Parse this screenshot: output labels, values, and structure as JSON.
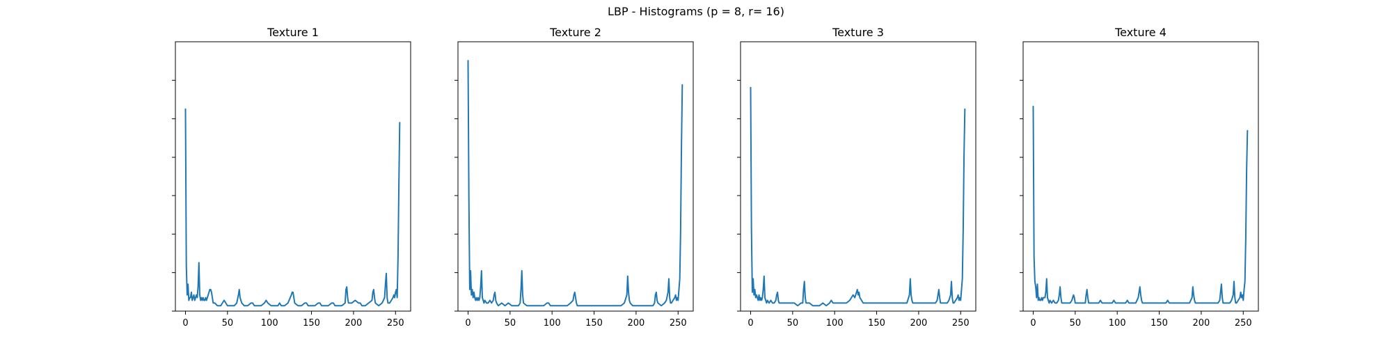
{
  "suptitle": "LBP - Histograms (p = 8, r= 16)",
  "chart_data": [
    {
      "type": "line",
      "title": "Texture 1",
      "xlabel": "",
      "ylabel": "",
      "xlim": [
        -12,
        268
      ],
      "ylim": [
        0,
        1
      ],
      "xticks": [
        0,
        50,
        100,
        150,
        200,
        250
      ],
      "yticks": [
        0,
        0.143,
        0.286,
        0.429,
        0.571,
        0.714,
        0.857
      ],
      "ytick_labels_visible": false,
      "color": "#1f77b4",
      "series": [
        {
          "x": [
            0,
            1,
            2,
            3,
            4,
            5,
            6,
            7,
            8,
            9,
            10,
            11,
            12,
            13,
            14,
            15,
            16,
            17,
            18,
            19,
            20,
            21,
            22,
            23,
            24,
            25,
            26,
            27,
            28,
            29,
            30,
            31,
            32,
            33,
            34,
            35,
            38,
            40,
            42,
            44,
            46,
            48,
            50,
            52,
            55,
            58,
            61,
            63,
            64,
            65,
            67,
            70,
            74,
            78,
            80,
            82,
            86,
            90,
            94,
            96,
            98,
            102,
            106,
            110,
            112,
            114,
            118,
            122,
            126,
            127,
            128,
            129,
            130,
            134,
            138,
            142,
            144,
            146,
            150,
            154,
            158,
            160,
            162,
            166,
            170,
            174,
            176,
            178,
            182,
            186,
            190,
            191,
            192,
            193,
            194,
            198,
            202,
            206,
            208,
            210,
            214,
            218,
            222,
            223,
            224,
            225,
            226,
            230,
            234,
            237,
            238,
            239,
            240,
            241,
            243,
            245,
            247,
            248,
            249,
            250,
            251,
            252,
            253,
            254,
            255
          ],
          "y": [
            0.75,
            0.17,
            0.06,
            0.1,
            0.04,
            0.05,
            0.05,
            0.07,
            0.04,
            0.05,
            0.06,
            0.04,
            0.05,
            0.06,
            0.05,
            0.09,
            0.18,
            0.06,
            0.04,
            0.05,
            0.04,
            0.05,
            0.04,
            0.04,
            0.05,
            0.04,
            0.05,
            0.06,
            0.07,
            0.08,
            0.08,
            0.07,
            0.05,
            0.03,
            0.03,
            0.03,
            0.02,
            0.02,
            0.02,
            0.03,
            0.04,
            0.03,
            0.02,
            0.02,
            0.02,
            0.02,
            0.03,
            0.06,
            0.08,
            0.05,
            0.03,
            0.02,
            0.02,
            0.03,
            0.03,
            0.02,
            0.02,
            0.02,
            0.03,
            0.04,
            0.03,
            0.02,
            0.02,
            0.02,
            0.03,
            0.02,
            0.02,
            0.03,
            0.06,
            0.07,
            0.07,
            0.05,
            0.03,
            0.02,
            0.02,
            0.03,
            0.03,
            0.02,
            0.02,
            0.02,
            0.03,
            0.03,
            0.02,
            0.02,
            0.02,
            0.03,
            0.03,
            0.02,
            0.02,
            0.02,
            0.03,
            0.08,
            0.09,
            0.05,
            0.03,
            0.03,
            0.04,
            0.03,
            0.03,
            0.02,
            0.02,
            0.03,
            0.04,
            0.07,
            0.08,
            0.05,
            0.03,
            0.02,
            0.03,
            0.05,
            0.1,
            0.14,
            0.05,
            0.03,
            0.03,
            0.04,
            0.05,
            0.06,
            0.05,
            0.07,
            0.08,
            0.05,
            0.2,
            0.47,
            0.7
          ]
        }
      ]
    },
    {
      "type": "line",
      "title": "Texture 2",
      "xlabel": "",
      "ylabel": "",
      "xlim": [
        -12,
        268
      ],
      "ylim": [
        0,
        1
      ],
      "xticks": [
        0,
        50,
        100,
        150,
        200,
        250
      ],
      "yticks": [
        0,
        0.143,
        0.286,
        0.429,
        0.571,
        0.714,
        0.857
      ],
      "ytick_labels_visible": false,
      "color": "#1f77b4",
      "series": [
        {
          "x": [
            0,
            1,
            2,
            3,
            4,
            5,
            6,
            7,
            8,
            9,
            10,
            11,
            12,
            13,
            14,
            15,
            16,
            17,
            18,
            19,
            20,
            22,
            24,
            26,
            28,
            30,
            31,
            32,
            33,
            34,
            36,
            40,
            44,
            48,
            52,
            56,
            60,
            62,
            63,
            64,
            65,
            66,
            70,
            74,
            78,
            82,
            86,
            90,
            94,
            96,
            98,
            102,
            106,
            110,
            114,
            118,
            122,
            125,
            126,
            127,
            128,
            129,
            130,
            134,
            140,
            146,
            150,
            156,
            160,
            166,
            170,
            174,
            178,
            182,
            186,
            189,
            190,
            191,
            192,
            193,
            196,
            200,
            204,
            208,
            212,
            216,
            220,
            222,
            223,
            224,
            225,
            226,
            230,
            234,
            236,
            238,
            239,
            240,
            241,
            242,
            244,
            246,
            247,
            248,
            249,
            250,
            251,
            252,
            253,
            254,
            255
          ],
          "y": [
            0.93,
            0.42,
            0.08,
            0.15,
            0.06,
            0.08,
            0.05,
            0.07,
            0.05,
            0.04,
            0.05,
            0.04,
            0.05,
            0.04,
            0.05,
            0.09,
            0.15,
            0.05,
            0.04,
            0.03,
            0.04,
            0.03,
            0.03,
            0.04,
            0.03,
            0.04,
            0.06,
            0.07,
            0.04,
            0.03,
            0.02,
            0.03,
            0.02,
            0.03,
            0.02,
            0.02,
            0.02,
            0.03,
            0.08,
            0.15,
            0.06,
            0.03,
            0.02,
            0.02,
            0.02,
            0.02,
            0.02,
            0.02,
            0.03,
            0.03,
            0.02,
            0.02,
            0.02,
            0.02,
            0.02,
            0.02,
            0.03,
            0.04,
            0.06,
            0.07,
            0.05,
            0.03,
            0.02,
            0.02,
            0.02,
            0.02,
            0.02,
            0.02,
            0.02,
            0.02,
            0.02,
            0.02,
            0.02,
            0.02,
            0.03,
            0.06,
            0.13,
            0.07,
            0.04,
            0.03,
            0.02,
            0.02,
            0.02,
            0.02,
            0.02,
            0.02,
            0.02,
            0.03,
            0.06,
            0.07,
            0.04,
            0.03,
            0.02,
            0.03,
            0.04,
            0.07,
            0.12,
            0.05,
            0.03,
            0.03,
            0.04,
            0.05,
            0.06,
            0.04,
            0.05,
            0.04,
            0.08,
            0.12,
            0.3,
            0.61,
            0.84
          ]
        }
      ]
    },
    {
      "type": "line",
      "title": "Texture 3",
      "xlabel": "",
      "ylabel": "",
      "xlim": [
        -12,
        268
      ],
      "ylim": [
        0,
        1
      ],
      "xticks": [
        0,
        50,
        100,
        150,
        200,
        250
      ],
      "yticks": [
        0,
        0.143,
        0.286,
        0.429,
        0.571,
        0.714,
        0.857
      ],
      "ytick_labels_visible": false,
      "color": "#1f77b4",
      "series": [
        {
          "x": [
            0,
            1,
            2,
            3,
            4,
            5,
            6,
            7,
            8,
            9,
            10,
            11,
            12,
            13,
            14,
            15,
            16,
            17,
            18,
            19,
            20,
            22,
            24,
            26,
            28,
            30,
            31,
            32,
            33,
            34,
            36,
            40,
            44,
            48,
            52,
            56,
            60,
            62,
            63,
            64,
            65,
            66,
            70,
            74,
            78,
            82,
            86,
            90,
            94,
            96,
            98,
            102,
            106,
            110,
            114,
            118,
            120,
            122,
            124,
            126,
            127,
            128,
            129,
            130,
            132,
            134,
            138,
            142,
            146,
            150,
            154,
            158,
            162,
            166,
            170,
            174,
            178,
            182,
            186,
            189,
            190,
            191,
            192,
            193,
            196,
            200,
            204,
            208,
            212,
            216,
            220,
            222,
            223,
            224,
            225,
            226,
            230,
            234,
            236,
            238,
            239,
            240,
            241,
            242,
            244,
            246,
            247,
            248,
            249,
            250,
            251,
            252,
            253,
            254,
            255
          ],
          "y": [
            0.83,
            0.3,
            0.07,
            0.12,
            0.06,
            0.08,
            0.05,
            0.06,
            0.05,
            0.04,
            0.06,
            0.04,
            0.05,
            0.04,
            0.05,
            0.08,
            0.13,
            0.05,
            0.04,
            0.03,
            0.04,
            0.03,
            0.04,
            0.03,
            0.03,
            0.04,
            0.06,
            0.07,
            0.04,
            0.03,
            0.03,
            0.03,
            0.03,
            0.03,
            0.03,
            0.02,
            0.03,
            0.03,
            0.08,
            0.11,
            0.05,
            0.03,
            0.03,
            0.02,
            0.02,
            0.02,
            0.03,
            0.02,
            0.03,
            0.04,
            0.03,
            0.03,
            0.03,
            0.03,
            0.03,
            0.04,
            0.05,
            0.06,
            0.05,
            0.07,
            0.08,
            0.06,
            0.07,
            0.05,
            0.04,
            0.03,
            0.03,
            0.03,
            0.03,
            0.03,
            0.03,
            0.03,
            0.03,
            0.03,
            0.03,
            0.03,
            0.03,
            0.03,
            0.03,
            0.06,
            0.12,
            0.06,
            0.04,
            0.03,
            0.03,
            0.03,
            0.03,
            0.03,
            0.03,
            0.03,
            0.03,
            0.04,
            0.06,
            0.08,
            0.05,
            0.03,
            0.03,
            0.03,
            0.04,
            0.06,
            0.11,
            0.05,
            0.03,
            0.03,
            0.04,
            0.05,
            0.06,
            0.04,
            0.05,
            0.04,
            0.08,
            0.12,
            0.3,
            0.58,
            0.75
          ]
        }
      ]
    },
    {
      "type": "line",
      "title": "Texture 4",
      "xlabel": "",
      "ylabel": "",
      "xlim": [
        -12,
        268
      ],
      "ylim": [
        0,
        1
      ],
      "xticks": [
        0,
        50,
        100,
        150,
        200,
        250
      ],
      "yticks": [
        0,
        0.143,
        0.286,
        0.429,
        0.571,
        0.714,
        0.857
      ],
      "ytick_labels_visible": false,
      "color": "#1f77b4",
      "series": [
        {
          "x": [
            0,
            1,
            2,
            3,
            4,
            5,
            6,
            7,
            8,
            9,
            10,
            11,
            12,
            13,
            14,
            15,
            16,
            17,
            18,
            19,
            20,
            22,
            24,
            26,
            28,
            30,
            31,
            32,
            33,
            34,
            36,
            40,
            44,
            46,
            47,
            48,
            49,
            50,
            54,
            58,
            62,
            63,
            64,
            65,
            66,
            70,
            74,
            78,
            80,
            82,
            86,
            90,
            94,
            96,
            98,
            102,
            106,
            110,
            112,
            114,
            118,
            122,
            125,
            126,
            127,
            128,
            129,
            130,
            134,
            138,
            142,
            146,
            150,
            154,
            158,
            160,
            162,
            166,
            170,
            174,
            178,
            182,
            186,
            189,
            190,
            191,
            192,
            193,
            196,
            200,
            204,
            208,
            212,
            216,
            220,
            222,
            223,
            224,
            225,
            226,
            230,
            234,
            236,
            238,
            239,
            240,
            241,
            242,
            244,
            246,
            247,
            248,
            249,
            250,
            251,
            252,
            253,
            254,
            255
          ],
          "y": [
            0.76,
            0.2,
            0.11,
            0.09,
            0.05,
            0.1,
            0.04,
            0.05,
            0.04,
            0.04,
            0.05,
            0.04,
            0.05,
            0.05,
            0.05,
            0.07,
            0.12,
            0.05,
            0.04,
            0.03,
            0.04,
            0.03,
            0.04,
            0.03,
            0.03,
            0.04,
            0.06,
            0.09,
            0.05,
            0.03,
            0.03,
            0.03,
            0.03,
            0.04,
            0.05,
            0.06,
            0.05,
            0.03,
            0.03,
            0.03,
            0.03,
            0.06,
            0.08,
            0.05,
            0.03,
            0.03,
            0.03,
            0.03,
            0.04,
            0.03,
            0.03,
            0.03,
            0.03,
            0.04,
            0.03,
            0.03,
            0.03,
            0.03,
            0.04,
            0.03,
            0.03,
            0.03,
            0.05,
            0.07,
            0.09,
            0.06,
            0.04,
            0.03,
            0.03,
            0.03,
            0.03,
            0.03,
            0.03,
            0.03,
            0.03,
            0.04,
            0.03,
            0.03,
            0.03,
            0.03,
            0.03,
            0.03,
            0.03,
            0.05,
            0.09,
            0.06,
            0.04,
            0.03,
            0.03,
            0.03,
            0.03,
            0.03,
            0.03,
            0.03,
            0.03,
            0.04,
            0.07,
            0.1,
            0.05,
            0.03,
            0.03,
            0.03,
            0.04,
            0.06,
            0.11,
            0.05,
            0.03,
            0.03,
            0.04,
            0.05,
            0.07,
            0.05,
            0.06,
            0.04,
            0.08,
            0.11,
            0.27,
            0.52,
            0.67
          ]
        }
      ]
    }
  ]
}
